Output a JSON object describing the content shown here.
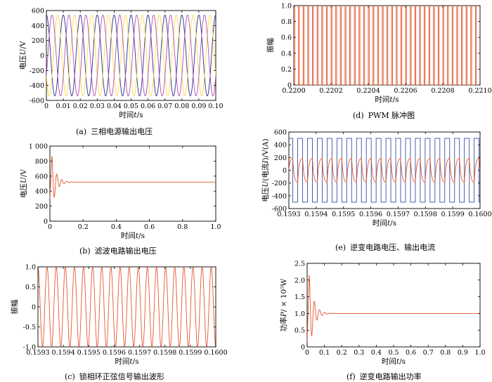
{
  "chart_data": [
    {
      "id": "a",
      "type": "line",
      "caption_label": "(a)",
      "caption": "三相电源输出电压",
      "xlabel": "时间",
      "xlabel_var": "t",
      "xlabel_unit": "/s",
      "ylabel": "电压",
      "ylabel_var": "U",
      "ylabel_unit": "/V",
      "xlim": [
        0,
        0.1
      ],
      "ylim": [
        -600,
        600
      ],
      "xticks": [
        "0",
        "0.01",
        "0.02",
        "0.03",
        "0.04",
        "0.05",
        "0.06",
        "0.07",
        "0.08",
        "0.09",
        "0.10"
      ],
      "yticks": [
        "600",
        "400",
        "200",
        "0",
        "-200",
        "-400",
        "-600"
      ],
      "signal": {
        "amplitude": 540,
        "frequency_hz": 100,
        "phases_deg": [
          0,
          120,
          240
        ]
      },
      "series": [
        {
          "color": "#2b2b8c"
        },
        {
          "color": "#ffd84a"
        },
        {
          "color": "#b34db3"
        }
      ]
    },
    {
      "id": "b",
      "type": "line",
      "caption_label": "(b)",
      "caption": "滤波电路输出电压",
      "xlabel": "时间",
      "xlabel_var": "t",
      "xlabel_unit": "/s",
      "ylabel": "电压",
      "ylabel_var": "U",
      "ylabel_unit": "/V",
      "xlim": [
        0,
        1.0
      ],
      "ylim": [
        0,
        1000
      ],
      "xticks": [
        "0",
        "0.2",
        "0.4",
        "0.6",
        "0.8",
        "1.0"
      ],
      "yticks": [
        "1 000",
        "800",
        "600",
        "400",
        "200",
        "0"
      ],
      "signal": {
        "steady": 520,
        "peak": 880,
        "peak_time": 0.03,
        "decay_end": 0.18
      },
      "series": [
        {
          "color": "#e2572e"
        }
      ]
    },
    {
      "id": "c",
      "type": "line",
      "caption_label": "(c)",
      "caption": "锁相环正弦信号输出波形",
      "xlabel": "时间",
      "xlabel_var": "t",
      "xlabel_unit": "/s",
      "ylabel": "振幅",
      "xlim": [
        0.1593,
        0.16
      ],
      "ylim": [
        -1,
        1
      ],
      "xticks": [
        "0.1593",
        "0.1594",
        "0.1595",
        "0.1596",
        "0.1597",
        "0.1598",
        "0.1599",
        "0.1600"
      ],
      "yticks": [
        "1.0",
        "0.5",
        "0",
        "-0.5",
        "-1.0"
      ],
      "signal": {
        "amplitude": 1,
        "cycles": 19.5
      },
      "series": [
        {
          "color": "#e2572e"
        }
      ]
    },
    {
      "id": "d",
      "type": "line",
      "caption_label": "(d)",
      "caption": "PWM 脉冲图",
      "xlabel": "时间",
      "xlabel_var": "t",
      "xlabel_unit": "/s",
      "ylabel": "振幅",
      "xlim": [
        0.22,
        0.221
      ],
      "ylim": [
        0,
        1
      ],
      "xticks": [
        "0.2200",
        "0.2202",
        "0.2204",
        "0.2206",
        "0.2208",
        "0.2210"
      ],
      "yticks": [
        "1.0",
        "0.8",
        "0.6",
        "0.4",
        "0.2",
        "0"
      ],
      "signal": {
        "pulses": 40
      },
      "series": [
        {
          "color": "#e2572e"
        }
      ]
    },
    {
      "id": "e",
      "type": "line",
      "caption_label": "(e)",
      "caption": "逆变电路电压、输出电流",
      "xlabel": "时间",
      "xlabel_var": "t",
      "xlabel_unit": "/s",
      "ylabel": "电压",
      "ylabel_var": "U",
      "ylabel_mid": "(电流",
      "ylabel_var2": "I",
      "ylabel_unit": ")/V(A)",
      "xlim": [
        0.1593,
        0.16
      ],
      "ylim": [
        -600,
        600
      ],
      "xticks": [
        "0.1593",
        "0.1594",
        "0.1595",
        "0.1596",
        "0.1597",
        "0.1598",
        "0.1599",
        "0.1600"
      ],
      "yticks": [
        "600",
        "400",
        "200",
        "0",
        "-200",
        "-400",
        "-600"
      ],
      "signal": {
        "square_amplitude": 500,
        "current_amplitude": 200,
        "cycles": 19.5
      },
      "series": [
        {
          "color": "#3a4fa3"
        },
        {
          "color": "#e2572e"
        }
      ]
    },
    {
      "id": "f",
      "type": "line",
      "caption_label": "(f)",
      "caption": "逆变电路输出功率",
      "xlabel": "时间",
      "xlabel_var": "t",
      "xlabel_unit": "/s",
      "ylabel": "功率",
      "ylabel_var": "P",
      "ylabel_unit": "/ × 10⁵W",
      "xlim": [
        0,
        1.0
      ],
      "ylim": [
        0,
        2.5
      ],
      "xticks": [
        "0",
        "0.1",
        "0.2",
        "0.3",
        "0.4",
        "0.5",
        "0.6",
        "0.7",
        "0.8",
        "0.9",
        "1.0"
      ],
      "yticks": [
        "2.5",
        "2.0",
        "1.5",
        "1.0",
        "0.5",
        "0"
      ],
      "signal": {
        "steady": 1.0,
        "peak": 2.2,
        "peak_time": 0.03,
        "decay_end": 0.18
      },
      "series": [
        {
          "color": "#e2572e"
        }
      ]
    }
  ]
}
